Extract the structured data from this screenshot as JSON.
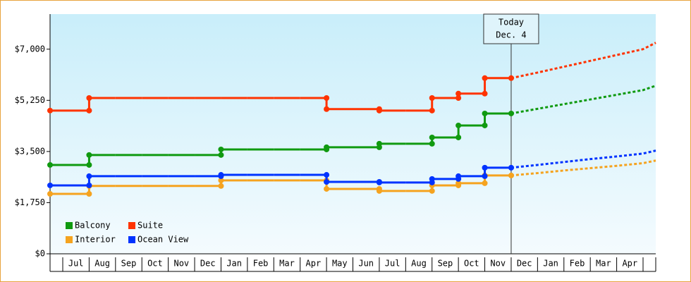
{
  "chart_data": {
    "type": "step-line",
    "categories": [
      null,
      "Jul",
      "Aug",
      "Sep",
      "Oct",
      "Nov",
      "Dec",
      "Jan",
      "Feb",
      "Mar",
      "Apr",
      "May",
      "Jun",
      "Jul",
      "Aug",
      "Sep",
      "Oct",
      "Nov",
      "Dec",
      "Jan",
      "Feb",
      "Mar",
      "Apr",
      null
    ],
    "ylim": [
      0,
      8200
    ],
    "yticks": [
      {
        "value": 0,
        "label": "$0"
      },
      {
        "value": 1750,
        "label": "$1,750"
      },
      {
        "value": 3500,
        "label": "$3,500"
      },
      {
        "value": 5250,
        "label": "$5,250"
      },
      {
        "value": 7000,
        "label": "$7,000"
      }
    ],
    "annotation": {
      "text": "Today",
      "date": "Dec. 4"
    },
    "series": [
      {
        "name": "Balcony",
        "color": "#109a10",
        "values": [
          3040,
          3040,
          3380,
          3380,
          3380,
          3380,
          3380,
          3570,
          3570,
          3570,
          3570,
          3645,
          3645,
          3765,
          3765,
          3980,
          4390,
          4800,
          null,
          null,
          null,
          null,
          null,
          null
        ],
        "forecast": [
          null,
          null,
          null,
          null,
          null,
          null,
          null,
          null,
          null,
          null,
          null,
          null,
          null,
          null,
          null,
          null,
          null,
          4800,
          4960,
          5120,
          5280,
          5440,
          5600,
          5750
        ]
      },
      {
        "name": "Suite",
        "color": "#ff3300",
        "values": [
          4900,
          4900,
          5330,
          5330,
          5330,
          5330,
          5330,
          5330,
          5330,
          5330,
          5330,
          4950,
          4950,
          4900,
          4900,
          5330,
          5480,
          6010,
          null,
          null,
          null,
          null,
          null,
          null
        ],
        "forecast": [
          null,
          null,
          null,
          null,
          null,
          null,
          null,
          null,
          null,
          null,
          null,
          null,
          null,
          null,
          null,
          null,
          null,
          6010,
          6200,
          6400,
          6600,
          6800,
          7000,
          7220
        ]
      },
      {
        "name": "Interior",
        "color": "#f5a31f",
        "values": [
          2050,
          2050,
          2320,
          2320,
          2320,
          2320,
          2320,
          2510,
          2510,
          2510,
          2510,
          2220,
          2220,
          2150,
          2150,
          2340,
          2415,
          2680,
          null,
          null,
          null,
          null,
          null,
          null
        ],
        "forecast": [
          null,
          null,
          null,
          null,
          null,
          null,
          null,
          null,
          null,
          null,
          null,
          null,
          null,
          null,
          null,
          null,
          null,
          2680,
          2760,
          2850,
          2930,
          3010,
          3100,
          3190
        ]
      },
      {
        "name": "Ocean View",
        "color": "#0033ff",
        "values": [
          2340,
          2340,
          2655,
          2655,
          2655,
          2655,
          2655,
          2700,
          2700,
          2700,
          2700,
          2460,
          2460,
          2440,
          2440,
          2560,
          2655,
          2945,
          null,
          null,
          null,
          null,
          null,
          null
        ],
        "forecast": [
          null,
          null,
          null,
          null,
          null,
          null,
          null,
          null,
          null,
          null,
          null,
          null,
          null,
          null,
          null,
          null,
          null,
          2945,
          3040,
          3140,
          3240,
          3330,
          3430,
          3530
        ]
      }
    ]
  }
}
